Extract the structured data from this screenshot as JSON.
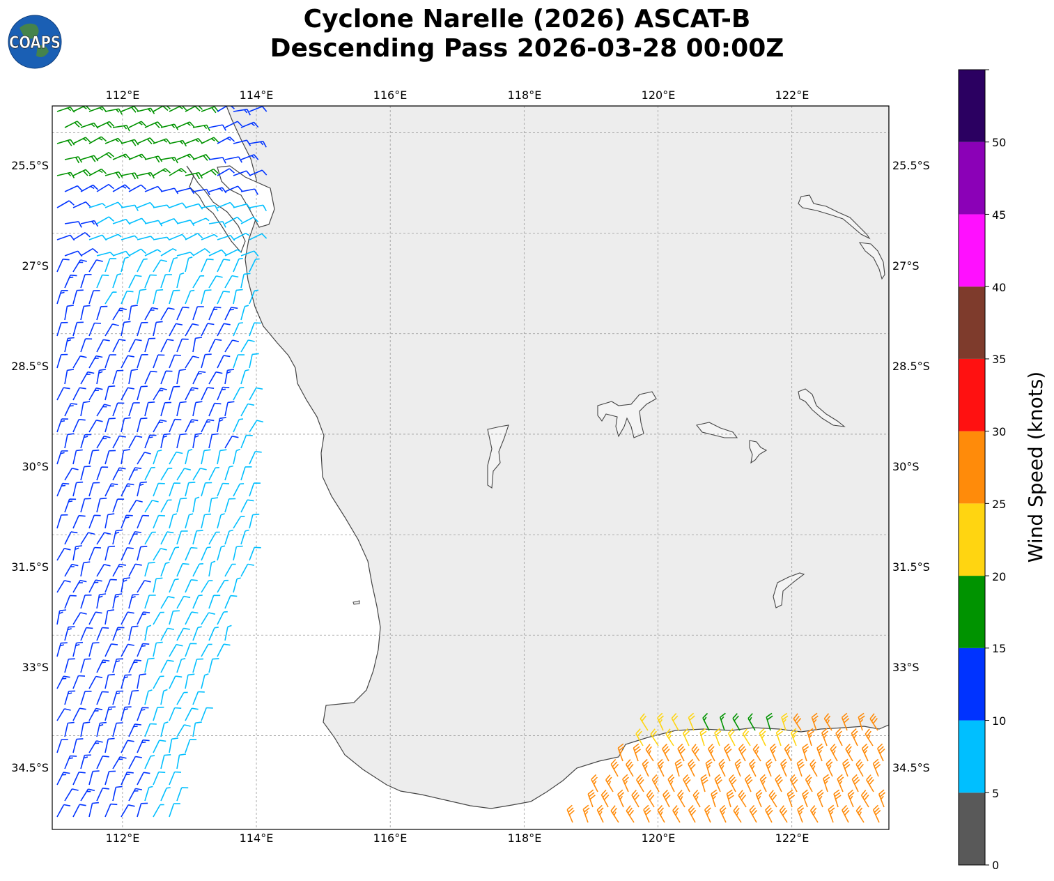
{
  "logo": {
    "text": "COAPS"
  },
  "title": {
    "line1": "Cyclone Narelle (2026) ASCAT-B",
    "line2": "Descending Pass 2026-03-28 00:00Z"
  },
  "map": {
    "lon_range": [
      110.95,
      123.45
    ],
    "lat_range": [
      -35.9,
      -25.1
    ],
    "lon_ticks": [
      {
        "value": 112,
        "label": "112°E"
      },
      {
        "value": 114,
        "label": "114°E"
      },
      {
        "value": 116,
        "label": "116°E"
      },
      {
        "value": 118,
        "label": "118°E"
      },
      {
        "value": 120,
        "label": "120°E"
      },
      {
        "value": 122,
        "label": "122°E"
      }
    ],
    "lat_ticks": [
      {
        "value": -25.5,
        "label": "25.5°S"
      },
      {
        "value": -27,
        "label": "27°S"
      },
      {
        "value": -28.5,
        "label": "28.5°S"
      },
      {
        "value": -30,
        "label": "30°S"
      },
      {
        "value": -31.5,
        "label": "31.5°S"
      },
      {
        "value": -33,
        "label": "33°S"
      },
      {
        "value": -34.5,
        "label": "34.5°S"
      }
    ],
    "gridlines": true,
    "land_color": "#eeeeee",
    "coast_color": "#444444"
  },
  "colorbar": {
    "label": "Wind Speed (knots)",
    "bins": [
      {
        "min": 0,
        "max": 5,
        "color": "#595959"
      },
      {
        "min": 5,
        "max": 10,
        "color": "#00bfff"
      },
      {
        "min": 10,
        "max": 15,
        "color": "#0033ff"
      },
      {
        "min": 15,
        "max": 20,
        "color": "#009300"
      },
      {
        "min": 20,
        "max": 25,
        "color": "#ffd511"
      },
      {
        "min": 25,
        "max": 30,
        "color": "#ff8b0a"
      },
      {
        "min": 30,
        "max": 35,
        "color": "#ff1111"
      },
      {
        "min": 35,
        "max": 40,
        "color": "#7e3b2c"
      },
      {
        "min": 40,
        "max": 45,
        "color": "#ff10ff"
      },
      {
        "min": 45,
        "max": 50,
        "color": "#8b01b7"
      },
      {
        "min": 50,
        "max": 55,
        "color": "#2b0061"
      }
    ],
    "ticks": [
      "0",
      "5",
      "10",
      "15",
      "20",
      "25",
      "30",
      "35",
      "40",
      "45",
      "50"
    ]
  }
}
